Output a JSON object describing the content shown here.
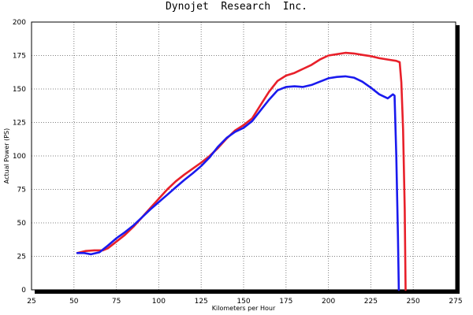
{
  "chart_data": {
    "type": "line",
    "title": "Dynojet  Research  Inc.",
    "xlabel": "Kilometers per Hour",
    "ylabel": "Actual Power (PS)",
    "xlim": [
      25,
      275
    ],
    "ylim": [
      0,
      200
    ],
    "x_ticks": [
      "25",
      "50",
      "75",
      "100",
      "125",
      "150",
      "175",
      "200",
      "225",
      "250",
      "275"
    ],
    "y_ticks": [
      "0",
      "25",
      "50",
      "75",
      "100",
      "125",
      "150",
      "175",
      "200"
    ],
    "grid": true,
    "colors": {
      "red": "#e8202a",
      "blue": "#1a1aee",
      "frame": "#000000"
    },
    "series": [
      {
        "color": "#e8202a",
        "points": [
          [
            52,
            27.5
          ],
          [
            57,
            29
          ],
          [
            62,
            29.5
          ],
          [
            67,
            29.5
          ],
          [
            70,
            31
          ],
          [
            75,
            36
          ],
          [
            80,
            41
          ],
          [
            85,
            47
          ],
          [
            90,
            54
          ],
          [
            95,
            61
          ],
          [
            100,
            68
          ],
          [
            105,
            75
          ],
          [
            110,
            81
          ],
          [
            115,
            86
          ],
          [
            120,
            90.5
          ],
          [
            125,
            95
          ],
          [
            130,
            100
          ],
          [
            135,
            106
          ],
          [
            140,
            113
          ],
          [
            145,
            119
          ],
          [
            150,
            123
          ],
          [
            155,
            128
          ],
          [
            160,
            138
          ],
          [
            165,
            148
          ],
          [
            170,
            156
          ],
          [
            175,
            160
          ],
          [
            180,
            162
          ],
          [
            185,
            165
          ],
          [
            190,
            168
          ],
          [
            195,
            172
          ],
          [
            200,
            175
          ],
          [
            205,
            176
          ],
          [
            210,
            177
          ],
          [
            215,
            176.5
          ],
          [
            220,
            175.5
          ],
          [
            225,
            174.5
          ],
          [
            230,
            173
          ],
          [
            235,
            172
          ],
          [
            240,
            171
          ],
          [
            242,
            170
          ],
          [
            243,
            155
          ],
          [
            244,
            120
          ],
          [
            245,
            60
          ],
          [
            245.5,
            0
          ]
        ]
      },
      {
        "color": "#1a1aee",
        "points": [
          [
            52,
            27.5
          ],
          [
            56,
            27.5
          ],
          [
            60,
            26.5
          ],
          [
            65,
            28
          ],
          [
            70,
            33
          ],
          [
            75,
            38.5
          ],
          [
            80,
            43
          ],
          [
            85,
            48
          ],
          [
            90,
            54
          ],
          [
            95,
            60
          ],
          [
            100,
            65.5
          ],
          [
            105,
            71
          ],
          [
            110,
            76.5
          ],
          [
            115,
            82
          ],
          [
            120,
            87
          ],
          [
            125,
            92.5
          ],
          [
            130,
            99
          ],
          [
            135,
            107
          ],
          [
            140,
            113.5
          ],
          [
            145,
            118
          ],
          [
            150,
            121
          ],
          [
            155,
            126
          ],
          [
            160,
            134
          ],
          [
            165,
            142
          ],
          [
            170,
            149
          ],
          [
            175,
            151.5
          ],
          [
            180,
            152
          ],
          [
            185,
            151.5
          ],
          [
            190,
            153
          ],
          [
            195,
            155.5
          ],
          [
            200,
            158
          ],
          [
            205,
            159
          ],
          [
            210,
            159.5
          ],
          [
            215,
            158.5
          ],
          [
            220,
            155.5
          ],
          [
            225,
            151
          ],
          [
            230,
            146
          ],
          [
            235,
            143
          ],
          [
            238,
            146
          ],
          [
            239,
            145
          ],
          [
            240,
            100
          ],
          [
            241,
            40
          ],
          [
            241.5,
            0
          ]
        ]
      }
    ]
  }
}
